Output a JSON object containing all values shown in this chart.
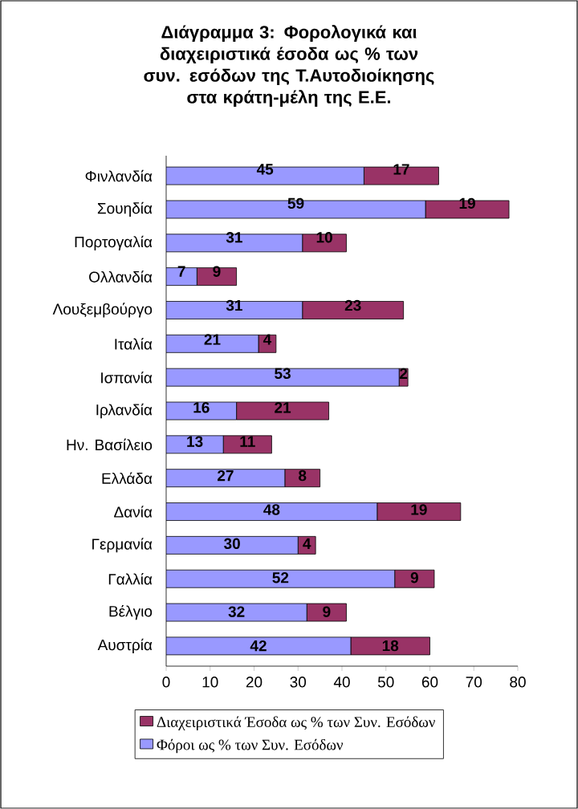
{
  "chart_data": {
    "type": "bar",
    "orientation": "horizontal",
    "stacked": true,
    "title": "Διάγραμμα 3: Φορολογικά και διαχειριστικά έσοδα ως % των συν. εσόδων της Τ.Αυτοδιοίκησης στα κράτη-μέλη της Ε.Ε.",
    "categories": [
      "Φινλανδία",
      "Σουηδία",
      "Πορτογαλία",
      "Ολλανδία",
      "Λουξεμβούργο",
      "Ιταλία",
      "Ισπανία",
      "Ιρλανδία",
      "Ην. Βασίλειο",
      "Ελλάδα",
      "Δανία",
      "Γερμανία",
      "Γαλλία",
      "Βέλγιο",
      "Αυστρία"
    ],
    "series": [
      {
        "name": "Φόροι ως % των Συν. Εσόδων",
        "color": "#9999ff",
        "values": [
          45,
          59,
          31,
          7,
          31,
          21,
          53,
          16,
          13,
          27,
          48,
          30,
          52,
          32,
          42
        ]
      },
      {
        "name": "Διαχειριστικά Έσοδα ως % των Συν. Εσόδων",
        "color": "#993366",
        "values": [
          17,
          19,
          10,
          9,
          23,
          4,
          2,
          21,
          11,
          8,
          19,
          4,
          9,
          9,
          18
        ]
      }
    ],
    "data_labels": true,
    "xlim": [
      0,
      80
    ],
    "xticks": [
      0,
      10,
      20,
      30,
      40,
      50,
      60,
      70,
      80
    ],
    "legend": "bottom"
  }
}
